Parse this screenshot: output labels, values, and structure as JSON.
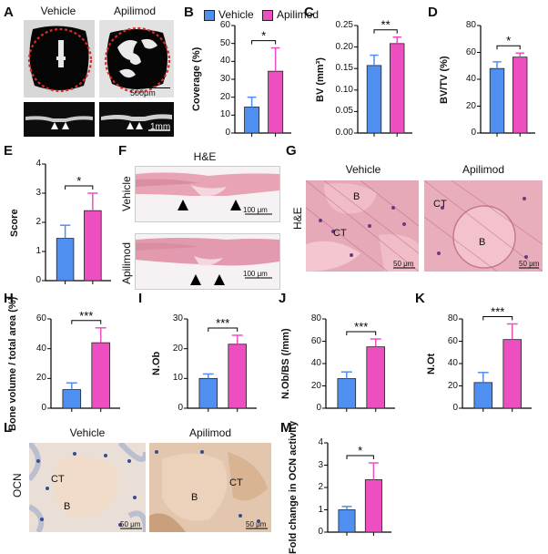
{
  "groups": [
    "Vehicle",
    "Apilimod"
  ],
  "colors": {
    "vehicle": "#4f8ff0",
    "apilimod": "#ee4fc0"
  },
  "legend": {
    "vehicle": "Vehicle",
    "apilimod": "Apilimod"
  },
  "panels": {
    "A": {
      "label": "A",
      "vehicle": "Vehicle",
      "apilimod": "Apilimod",
      "scale_top": "500μm",
      "scale_bottom": "1mm"
    },
    "E": {
      "label": "E"
    },
    "F": {
      "label": "F",
      "title": "H&E",
      "row1": "Vehicle",
      "row2": "Apilimod",
      "scale": "100 μm"
    },
    "G": {
      "label": "G",
      "side": "H&E",
      "vehicle": "Vehicle",
      "apilimod": "Apilimod",
      "v_labels": [
        "B",
        "CT"
      ],
      "a_labels": [
        "CT",
        "B"
      ],
      "scale": "50 μm"
    },
    "L": {
      "label": "L",
      "side": "OCN",
      "vehicle": "Vehicle",
      "apilimod": "Apilimod",
      "v_labels": [
        "CT",
        "B"
      ],
      "a_labels": [
        "B",
        "CT"
      ],
      "scale": "50 μm"
    }
  },
  "chart_data": [
    {
      "panel": "B",
      "type": "bar",
      "ylabel": "Coverage (%)",
      "ylim": [
        0,
        60
      ],
      "yticks": [
        0,
        10,
        20,
        30,
        40,
        50,
        60
      ],
      "categories": [
        "Vehicle",
        "Apilimod"
      ],
      "values": [
        14.5,
        34.5
      ],
      "errors": [
        5.5,
        13
      ],
      "significance": "*"
    },
    {
      "panel": "C",
      "type": "bar",
      "ylabel": "BV (mm³)",
      "ylim": [
        0,
        0.25
      ],
      "yticks": [
        "0.00",
        "0.05",
        "0.10",
        "0.15",
        "0.20",
        "0.25"
      ],
      "categories": [
        "Vehicle",
        "Apilimod"
      ],
      "values": [
        0.157,
        0.208
      ],
      "errors": [
        0.024,
        0.015
      ],
      "significance": "**"
    },
    {
      "panel": "D",
      "type": "bar",
      "ylabel": "BV/TV (%)",
      "ylim": [
        0,
        80
      ],
      "yticks": [
        0,
        20,
        40,
        60,
        80
      ],
      "categories": [
        "Vehicle",
        "Apilimod"
      ],
      "values": [
        48,
        56.5
      ],
      "errors": [
        5,
        3
      ],
      "significance": "*"
    },
    {
      "panel": "E",
      "type": "bar",
      "ylabel": "Score",
      "ylim": [
        0,
        4
      ],
      "yticks": [
        0,
        1,
        2,
        3,
        4
      ],
      "categories": [
        "Vehicle",
        "Apilimod"
      ],
      "values": [
        1.45,
        2.4
      ],
      "errors": [
        0.45,
        0.6
      ],
      "significance": "*"
    },
    {
      "panel": "H",
      "type": "bar",
      "ylabel": "Bone volume / total area (%)",
      "ylim": [
        0,
        60
      ],
      "yticks": [
        0,
        20,
        40,
        60
      ],
      "categories": [
        "Vehicle",
        "Apilimod"
      ],
      "values": [
        12.5,
        44
      ],
      "errors": [
        4.5,
        10
      ],
      "significance": "***"
    },
    {
      "panel": "I",
      "type": "bar",
      "ylabel": "N.Ob",
      "ylim": [
        0,
        30
      ],
      "yticks": [
        0,
        10,
        20,
        30
      ],
      "categories": [
        "Vehicle",
        "Apilimod"
      ],
      "values": [
        10,
        21.5
      ],
      "errors": [
        1.5,
        3
      ],
      "significance": "***"
    },
    {
      "panel": "J",
      "type": "bar",
      "ylabel": "N.Ob/BS (/mm)",
      "ylim": [
        0,
        80
      ],
      "yticks": [
        0,
        20,
        40,
        60,
        80
      ],
      "categories": [
        "Vehicle",
        "Apilimod"
      ],
      "values": [
        26.5,
        55
      ],
      "errors": [
        6,
        7
      ],
      "significance": "***"
    },
    {
      "panel": "K",
      "type": "bar",
      "ylabel": "N.Ot",
      "ylim": [
        0,
        80
      ],
      "yticks": [
        0,
        20,
        40,
        60,
        80
      ],
      "categories": [
        "Vehicle",
        "Apilimod"
      ],
      "values": [
        23,
        61.5
      ],
      "errors": [
        9,
        14
      ],
      "significance": "***"
    },
    {
      "panel": "M",
      "type": "bar",
      "ylabel": "Fold change in OCN activity",
      "ylim": [
        0,
        4
      ],
      "yticks": [
        0,
        1,
        2,
        3,
        4
      ],
      "categories": [
        "Vehicle",
        "Apilimod"
      ],
      "values": [
        1,
        2.35
      ],
      "errors": [
        0.15,
        0.75
      ],
      "significance": "*"
    }
  ]
}
